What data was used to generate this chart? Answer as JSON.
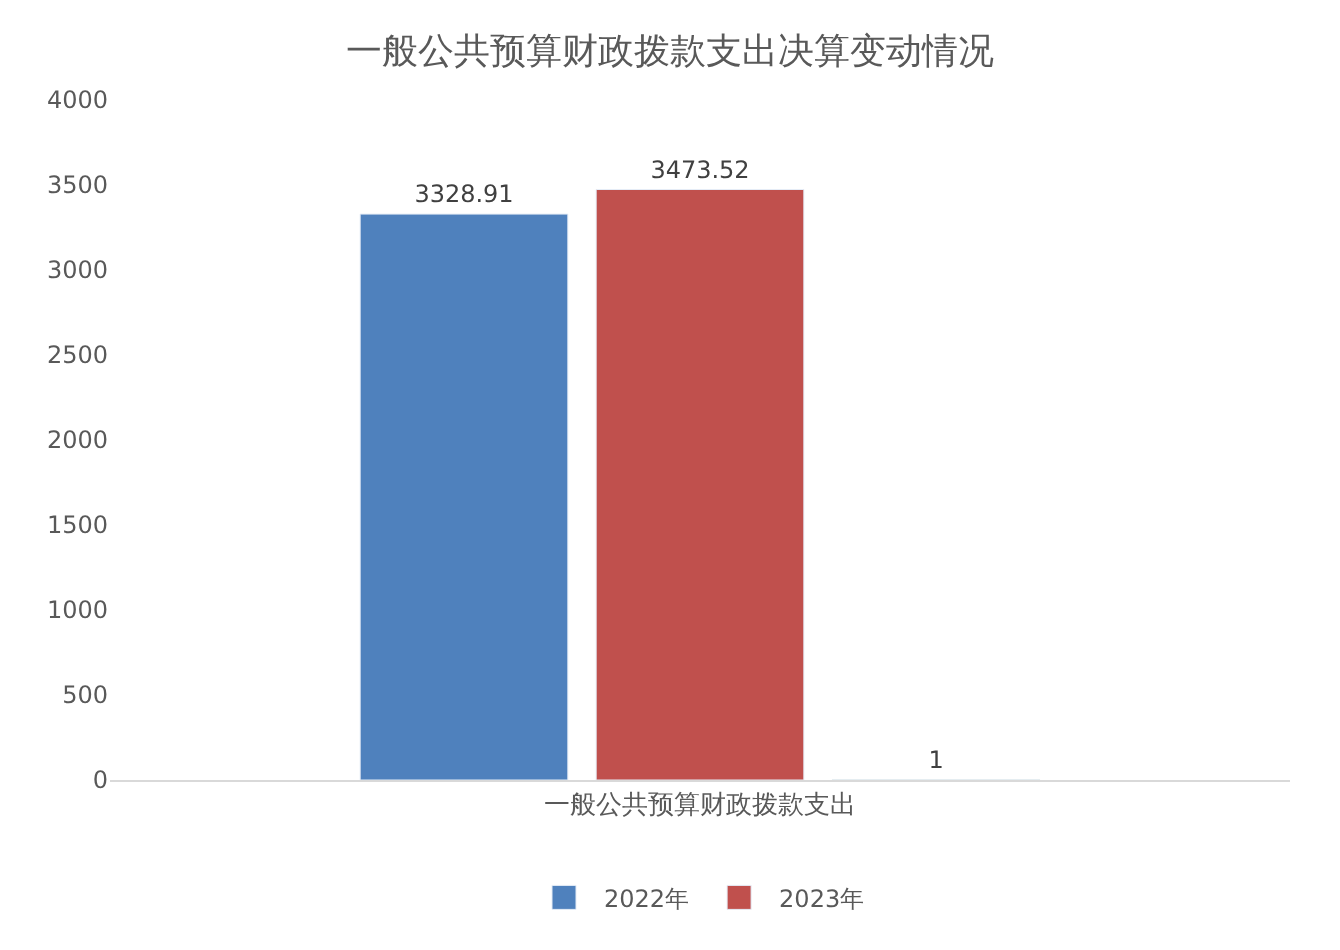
{
  "chart_data": {
    "type": "bar",
    "title": "一般公共预算财政拨款支出决算变动情况",
    "categories": [
      "一般公共预算财政拨款支出"
    ],
    "series": [
      {
        "name": "2022年",
        "color": "#4f81bd",
        "values": [
          3328.91
        ]
      },
      {
        "name": "2023年",
        "color": "#c0504d",
        "values": [
          3473.52
        ]
      },
      {
        "color": "#9bbb59",
        "values": [
          1
        ]
      }
    ],
    "ylim": [
      0,
      4000
    ],
    "yticks": [
      0,
      500,
      1000,
      1500,
      2000,
      2500,
      3000,
      3500,
      4000
    ],
    "grid": false,
    "legend": "bottom",
    "data_labels": true
  }
}
